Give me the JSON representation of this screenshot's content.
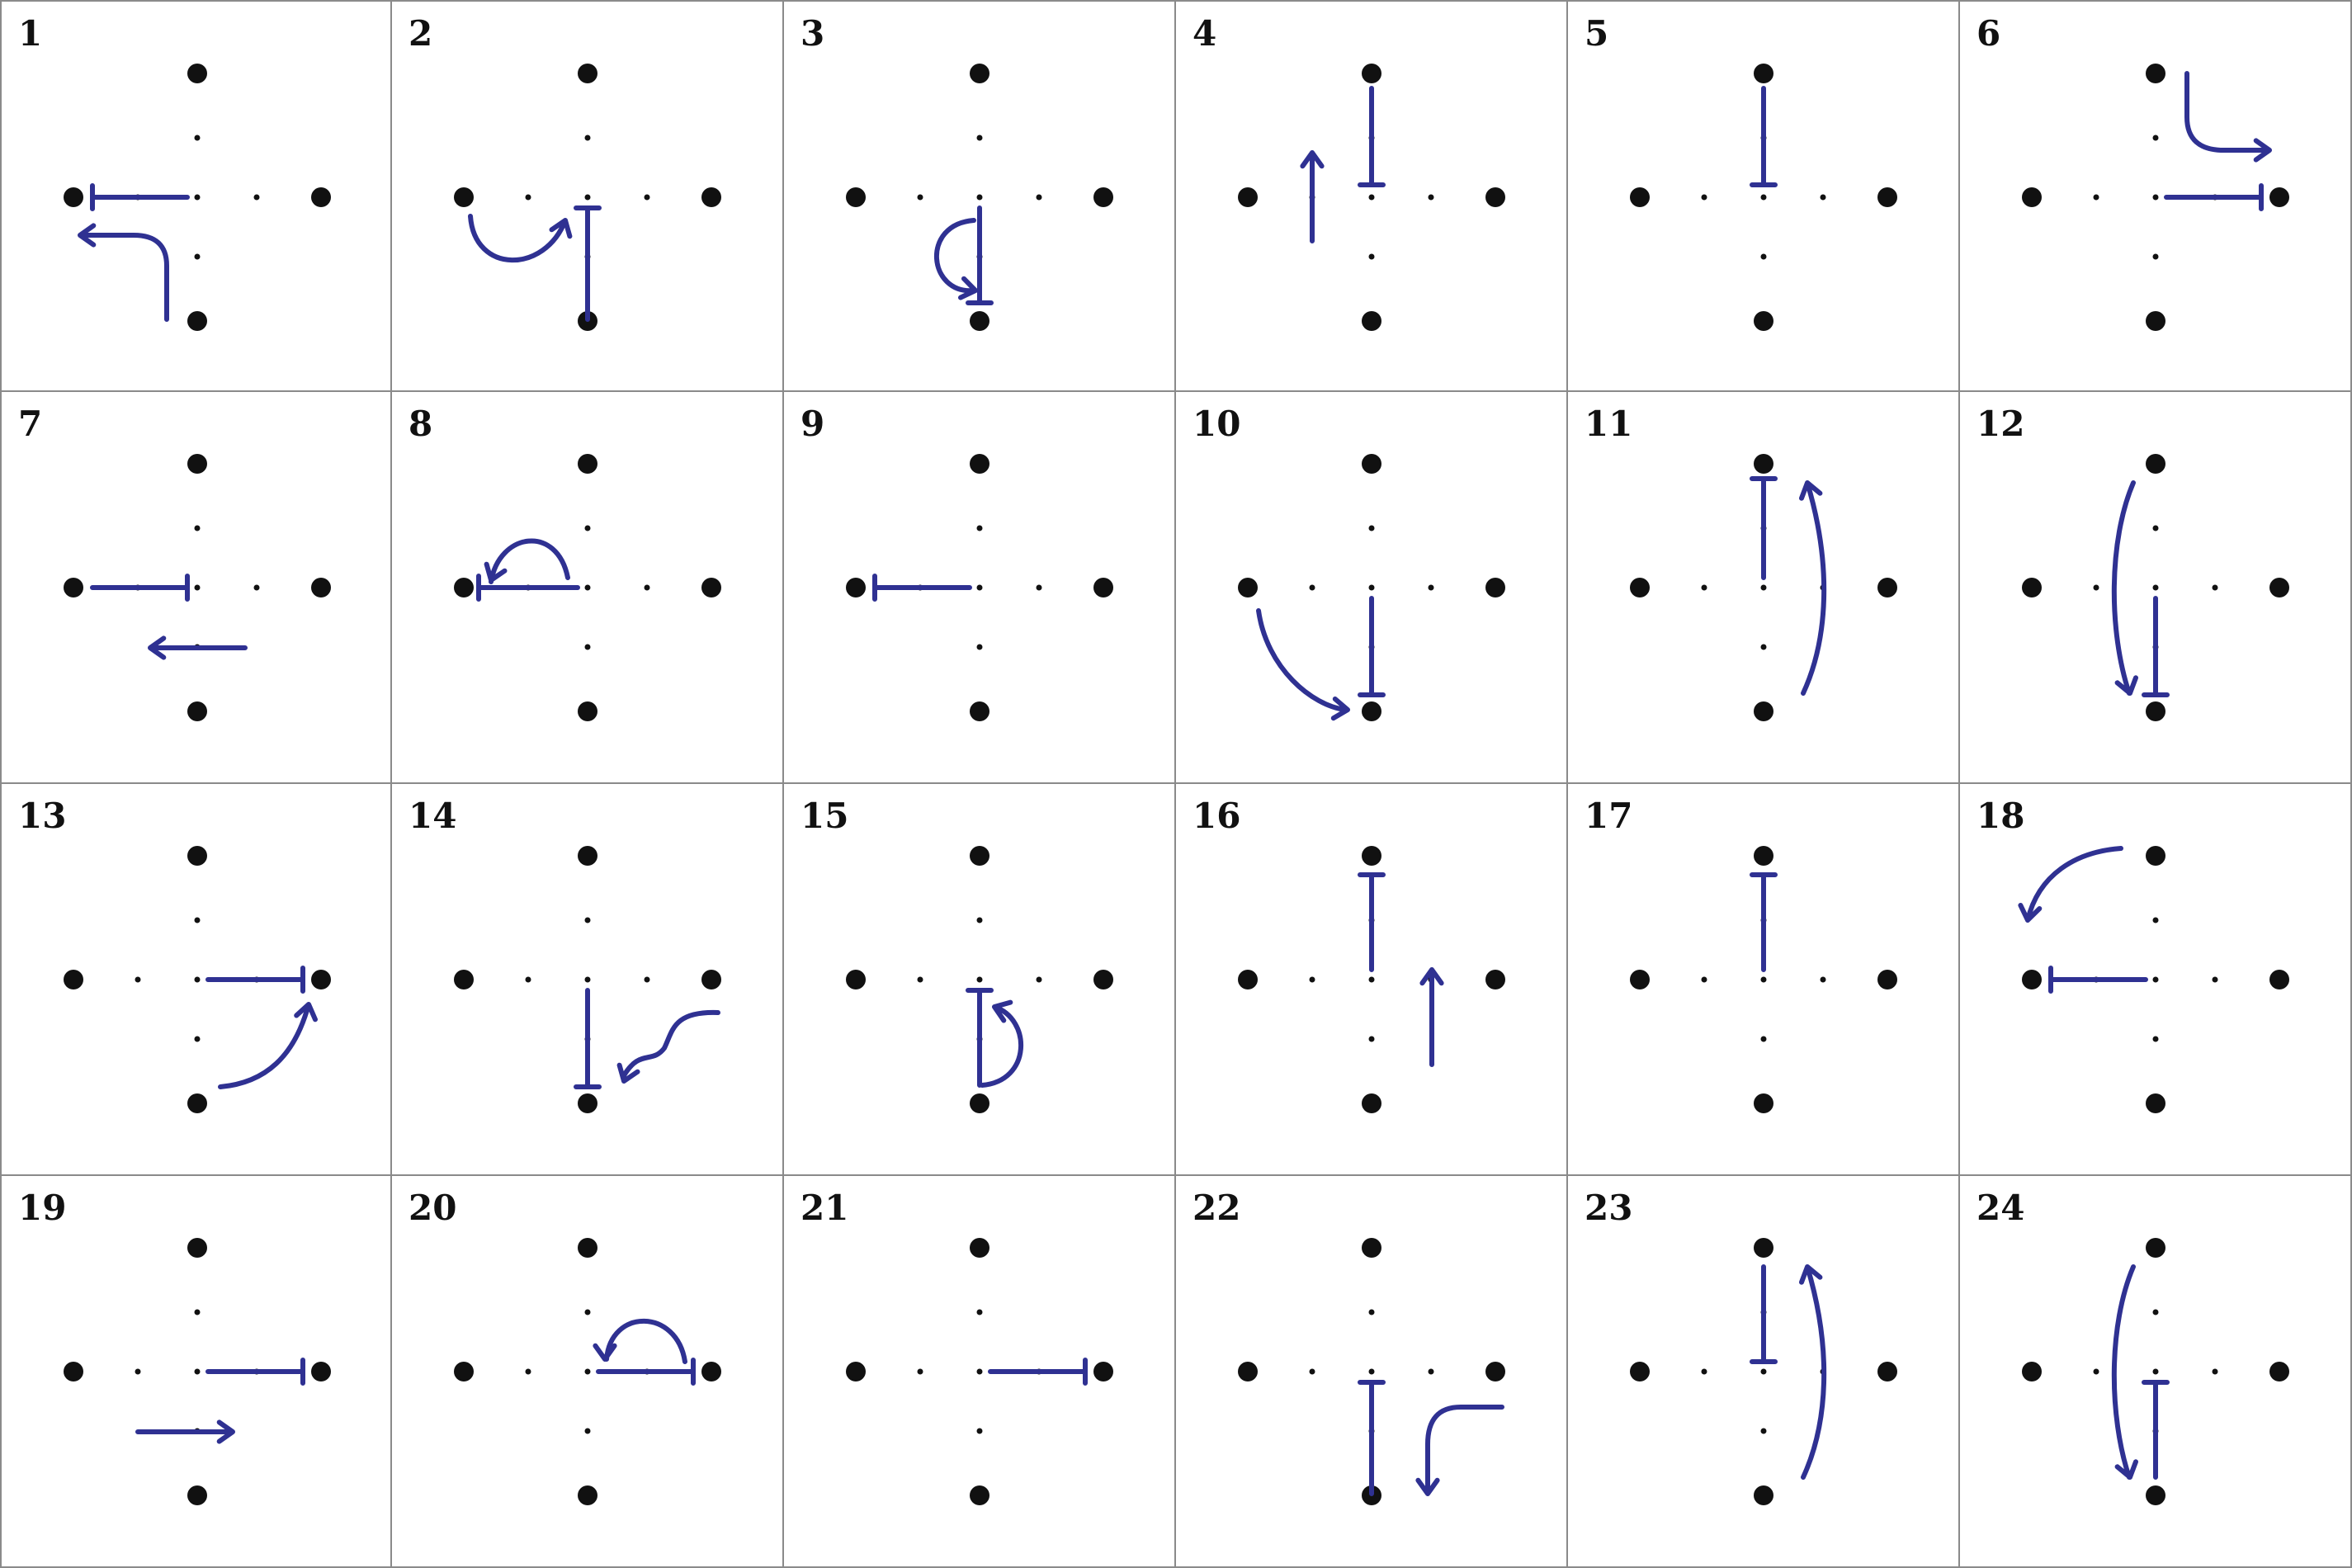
{
  "accent_color": "#2f3192",
  "dot_color": "#111111",
  "panels": [
    {
      "number": "1"
    },
    {
      "number": "2"
    },
    {
      "number": "3"
    },
    {
      "number": "4"
    },
    {
      "number": "5"
    },
    {
      "number": "6"
    },
    {
      "number": "7"
    },
    {
      "number": "8"
    },
    {
      "number": "9"
    },
    {
      "number": "10"
    },
    {
      "number": "11"
    },
    {
      "number": "12"
    },
    {
      "number": "13"
    },
    {
      "number": "14"
    },
    {
      "number": "15"
    },
    {
      "number": "16"
    },
    {
      "number": "17"
    },
    {
      "number": "18"
    },
    {
      "number": "19"
    },
    {
      "number": "20"
    },
    {
      "number": "21"
    },
    {
      "number": "22"
    },
    {
      "number": "23"
    },
    {
      "number": "24"
    }
  ]
}
